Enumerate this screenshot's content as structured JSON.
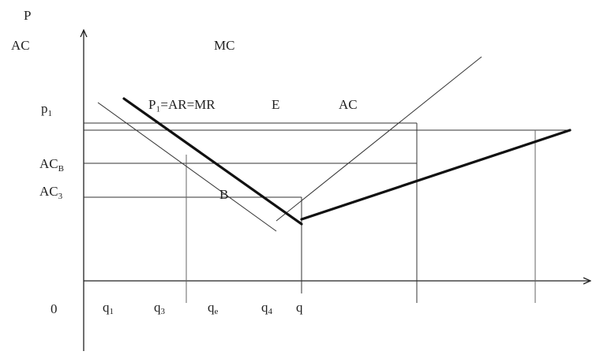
{
  "axes": {
    "y_label_line1": "P",
    "y_label_line2": "AC",
    "origin": "0"
  },
  "curve_labels": {
    "mc": "MC",
    "demand": "P₁=AR=MR",
    "e": "E",
    "ac": "AC",
    "b": "B"
  },
  "y_ticks": {
    "p1": {
      "base": "p",
      "sub": "1"
    },
    "acb": {
      "base": "AC",
      "sub": "B"
    },
    "ac3": {
      "base": "AC",
      "sub": "3"
    }
  },
  "x_ticks": [
    {
      "base": "q",
      "sub": "1"
    },
    {
      "base": "q",
      "sub": "3"
    },
    {
      "base": "q",
      "sub": "e"
    },
    {
      "base": "q",
      "sub": "4"
    },
    {
      "base": "q",
      "sub": ""
    }
  ]
}
